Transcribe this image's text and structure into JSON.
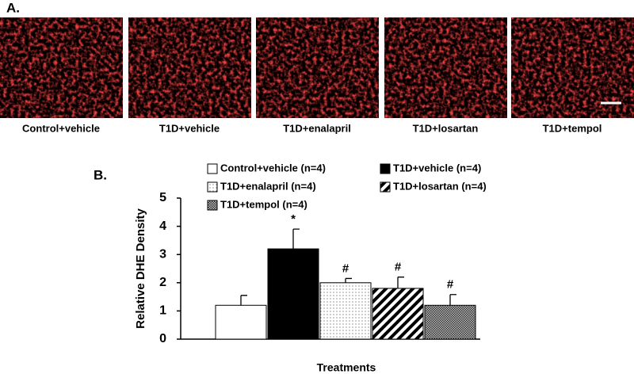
{
  "panel_a": {
    "label": "A.",
    "images": [
      {
        "caption": "Control+vehicle"
      },
      {
        "caption": "T1D+vehicle"
      },
      {
        "caption": "T1D+enalapril"
      },
      {
        "caption": "T1D+losartan"
      },
      {
        "caption": "T1D+tempol"
      }
    ]
  },
  "chart_data": {
    "type": "bar",
    "panel_label": "B.",
    "xlabel": "Treatments",
    "ylabel": "Relative DHE Density",
    "ylim": [
      0,
      5
    ],
    "yticks": [
      0,
      1,
      2,
      3,
      4,
      5
    ],
    "series": [
      {
        "name": "Control+vehicle (n=4)",
        "fill": "white",
        "values": [
          1.2
        ],
        "errors": [
          0.35
        ]
      },
      {
        "name": "T1D+vehicle (n=4)",
        "fill": "black",
        "values": [
          3.2
        ],
        "errors": [
          0.7
        ],
        "annotations": [
          "*"
        ]
      },
      {
        "name": "T1D+enalapril (n=4)",
        "fill": "dots",
        "values": [
          2.0
        ],
        "errors": [
          0.15
        ],
        "annotations": [
          "#"
        ]
      },
      {
        "name": "T1D+losartan (n=4)",
        "fill": "stripes",
        "values": [
          1.8
        ],
        "errors": [
          0.4
        ],
        "annotations": [
          "#"
        ]
      },
      {
        "name": "T1D+tempol (n=4)",
        "fill": "checker",
        "values": [
          1.2
        ],
        "errors": [
          0.38
        ],
        "annotations": [
          "#"
        ]
      }
    ]
  }
}
